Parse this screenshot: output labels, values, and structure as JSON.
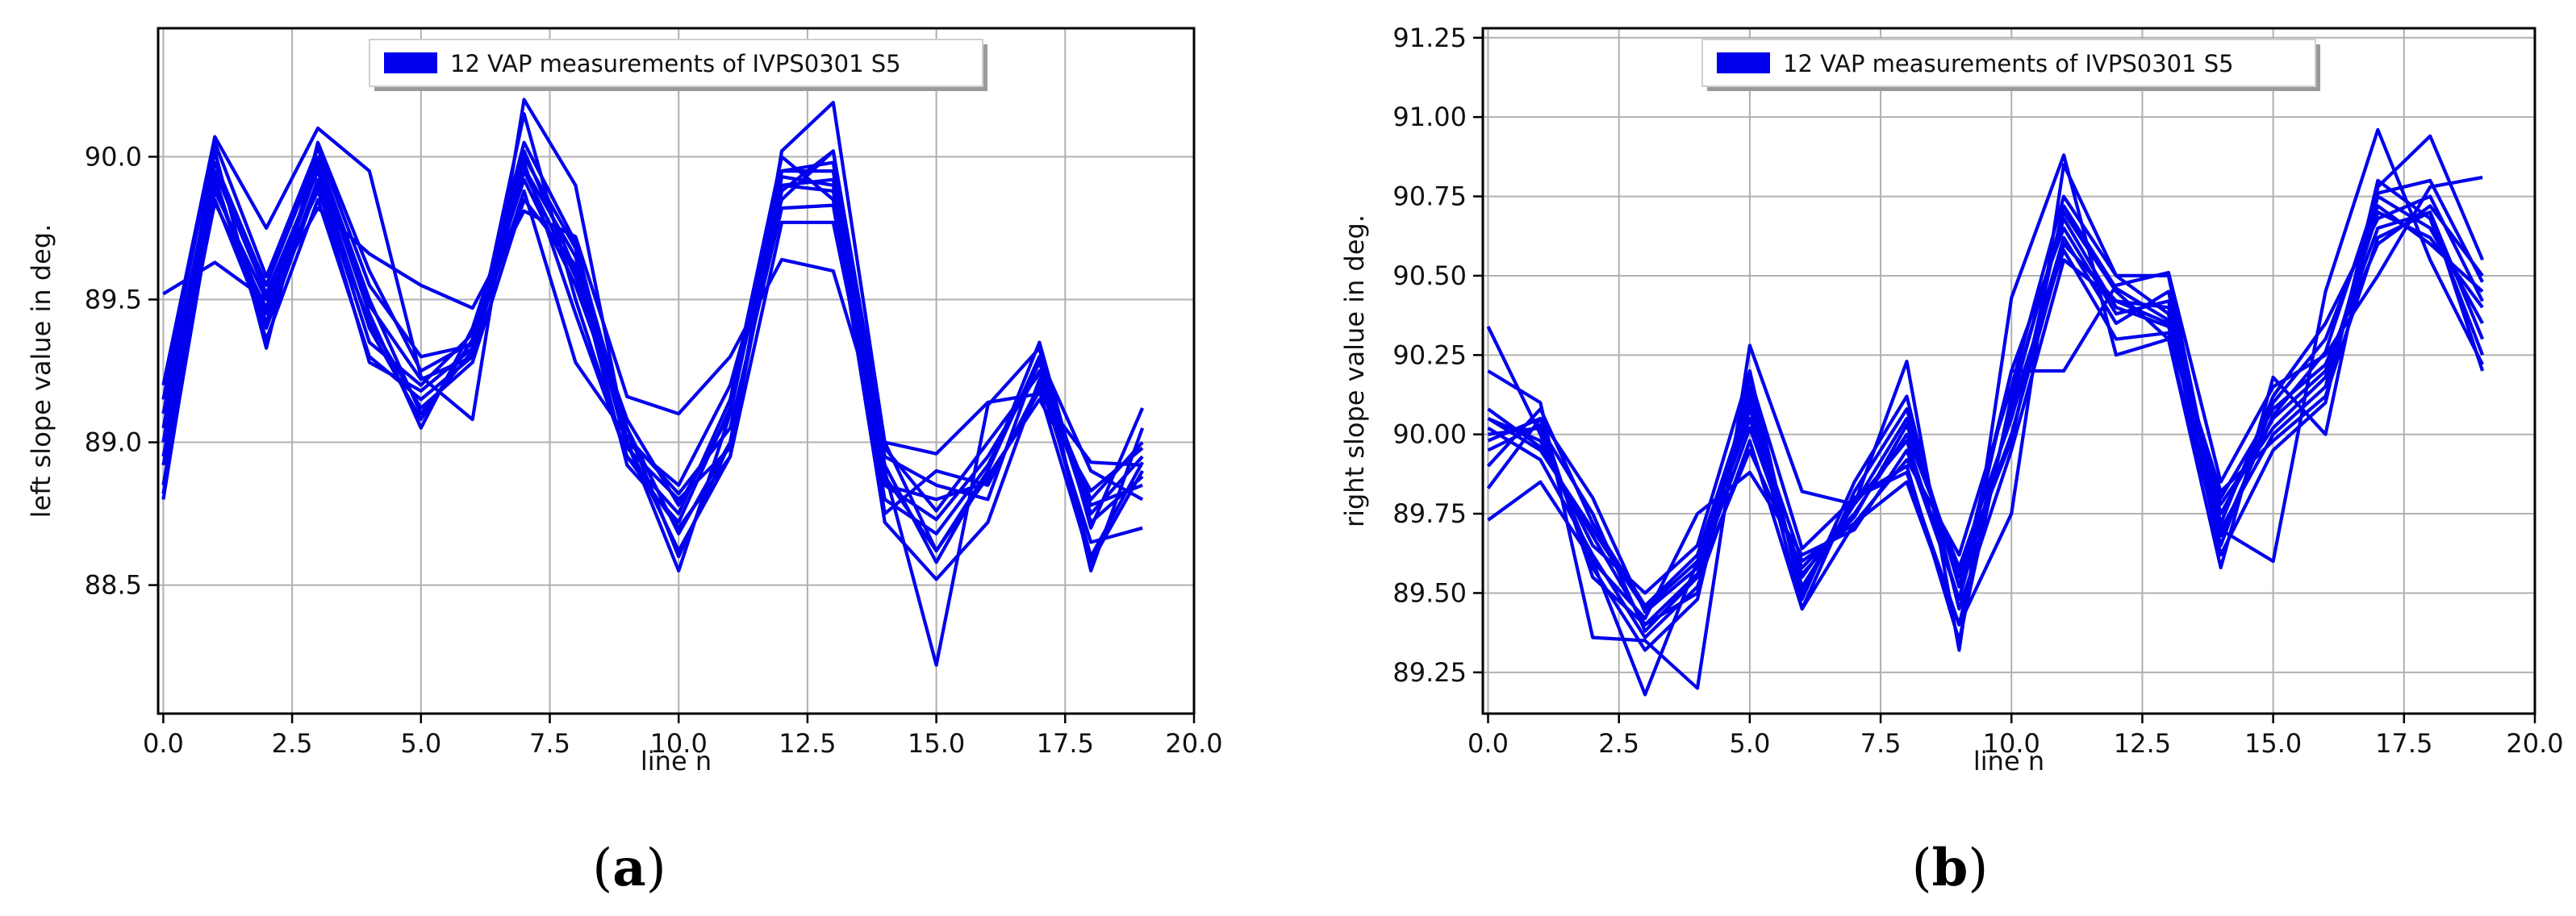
{
  "chart_data": [
    {
      "type": "line",
      "panel": "(a)",
      "caption_prefix": "(",
      "caption_letter": "a",
      "caption_suffix": ")",
      "xlabel": "line n",
      "ylabel": "left slope value in deg.",
      "legend": "12 VAP measurements of IVPS0301 S5",
      "legend_position": "top-center",
      "grid": true,
      "color": "#0000ee",
      "xlim": [
        -0.1,
        20.0
      ],
      "ylim": [
        88.05,
        90.45
      ],
      "xticks": [
        0.0,
        2.5,
        5.0,
        7.5,
        10.0,
        12.5,
        15.0,
        17.5,
        20.0
      ],
      "xtick_labels": [
        "0.0",
        "2.5",
        "5.0",
        "7.5",
        "10.0",
        "12.5",
        "15.0",
        "17.5",
        "20.0"
      ],
      "yticks": [
        88.5,
        89.0,
        89.5,
        90.0
      ],
      "ytick_labels": [
        "88.5",
        "89.0",
        "89.5",
        "90.0"
      ],
      "x": [
        0,
        1,
        2,
        3,
        4,
        5,
        6,
        7,
        8,
        9,
        10,
        11,
        12,
        13,
        14,
        15,
        16,
        17,
        18,
        19
      ],
      "series": [
        {
          "values": [
            89.52,
            89.63,
            89.5,
            89.82,
            89.66,
            89.55,
            89.47,
            89.81,
            89.72,
            89.16,
            89.1,
            89.3,
            89.64,
            89.6,
            89.0,
            88.96,
            89.14,
            89.17,
            88.93,
            88.92
          ]
        },
        {
          "values": [
            89.2,
            90.07,
            89.75,
            90.1,
            89.95,
            89.23,
            89.08,
            90.2,
            89.9,
            89.0,
            88.62,
            88.95,
            90.02,
            90.19,
            89.0,
            88.62,
            88.9,
            89.35,
            88.7,
            89.12
          ]
        },
        {
          "values": [
            88.8,
            89.93,
            89.36,
            89.85,
            89.3,
            89.15,
            89.3,
            90.15,
            89.5,
            88.95,
            88.7,
            88.95,
            89.77,
            89.77,
            88.9,
            88.22,
            89.13,
            89.33,
            88.55,
            89.05
          ]
        },
        {
          "values": [
            89.0,
            90.02,
            89.33,
            90.05,
            89.6,
            89.25,
            89.35,
            90.05,
            89.7,
            89.0,
            88.55,
            89.1,
            89.95,
            89.95,
            88.85,
            88.73,
            88.95,
            89.25,
            88.6,
            88.93
          ]
        },
        {
          "values": [
            88.95,
            89.84,
            89.47,
            89.98,
            89.45,
            89.05,
            89.4,
            89.96,
            89.65,
            88.98,
            88.8,
            88.98,
            89.9,
            89.88,
            88.75,
            88.9,
            88.85,
            89.2,
            88.78,
            88.85
          ]
        },
        {
          "values": [
            89.1,
            89.98,
            89.55,
            90.0,
            89.5,
            89.1,
            89.32,
            90.02,
            89.6,
            89.0,
            88.85,
            89.2,
            89.85,
            90.02,
            88.95,
            88.85,
            88.8,
            89.3,
            88.9,
            88.8
          ]
        },
        {
          "values": [
            88.85,
            89.9,
            89.42,
            89.92,
            89.35,
            89.2,
            89.38,
            89.92,
            89.55,
            89.05,
            88.68,
            89.0,
            89.93,
            89.9,
            88.88,
            88.62,
            88.88,
            89.15,
            88.83,
            88.98
          ]
        },
        {
          "values": [
            89.05,
            89.95,
            89.52,
            89.95,
            89.4,
            89.08,
            89.36,
            89.98,
            89.45,
            88.95,
            88.75,
            89.15,
            90.0,
            89.85,
            88.72,
            88.52,
            88.72,
            89.22,
            88.65,
            88.7
          ]
        },
        {
          "values": [
            88.92,
            89.85,
            89.4,
            89.9,
            89.28,
            89.18,
            89.33,
            89.88,
            89.28,
            89.02,
            88.82,
            89.05,
            89.82,
            89.83,
            88.8,
            88.68,
            88.92,
            89.28,
            88.72,
            88.88
          ]
        },
        {
          "values": [
            89.15,
            90.05,
            89.58,
            90.03,
            89.55,
            89.3,
            89.34,
            90.0,
            89.68,
            89.05,
            88.6,
            89.0,
            89.88,
            90.02,
            88.98,
            88.76,
            89.0,
            89.24,
            88.8,
            89.0
          ]
        },
        {
          "values": [
            89.0,
            89.9,
            89.45,
            89.96,
            89.48,
            89.22,
            89.3,
            89.95,
            89.58,
            89.08,
            88.78,
            89.1,
            89.95,
            89.98,
            88.92,
            88.58,
            88.9,
            89.3,
            88.75,
            88.95
          ]
        },
        {
          "values": [
            88.82,
            89.88,
            89.5,
            89.88,
            89.42,
            89.12,
            89.28,
            89.85,
            89.62,
            88.92,
            88.72,
            89.12,
            89.9,
            89.92,
            88.85,
            88.8,
            88.86,
            89.18,
            88.58,
            88.9
          ]
        }
      ]
    },
    {
      "type": "line",
      "panel": "(b)",
      "caption_prefix": "(",
      "caption_letter": "b",
      "caption_suffix": ")",
      "xlabel": "line n",
      "ylabel": "right slope value in deg.",
      "legend": "12 VAP measurements of IVPS0301 S5",
      "legend_position": "top-center",
      "grid": true,
      "color": "#0000ee",
      "xlim": [
        -0.1,
        20.0
      ],
      "ylim": [
        89.12,
        91.28
      ],
      "xticks": [
        0.0,
        2.5,
        5.0,
        7.5,
        10.0,
        12.5,
        15.0,
        17.5,
        20.0
      ],
      "xtick_labels": [
        "0.0",
        "2.5",
        "5.0",
        "7.5",
        "10.0",
        "12.5",
        "15.0",
        "17.5",
        "20.0"
      ],
      "yticks": [
        89.25,
        89.5,
        89.75,
        90.0,
        90.25,
        90.5,
        90.75,
        91.0,
        91.25
      ],
      "ytick_labels": [
        "89.25",
        "89.50",
        "89.75",
        "90.00",
        "90.25",
        "90.50",
        "90.75",
        "91.00",
        "91.25"
      ],
      "x": [
        0,
        1,
        2,
        3,
        4,
        5,
        6,
        7,
        8,
        9,
        10,
        11,
        12,
        13,
        14,
        15,
        16,
        17,
        18,
        19
      ],
      "series": [
        {
          "values": [
            90.34,
            90.0,
            89.6,
            89.18,
            89.6,
            90.1,
            89.45,
            89.72,
            89.85,
            89.4,
            89.75,
            90.85,
            90.5,
            90.5,
            89.7,
            89.6,
            90.45,
            90.96,
            90.55,
            90.22
          ]
        },
        {
          "values": [
            90.2,
            90.1,
            89.36,
            89.35,
            89.2,
            90.28,
            89.82,
            89.78,
            90.23,
            89.32,
            90.43,
            90.88,
            90.25,
            90.3,
            89.58,
            90.18,
            90.0,
            90.78,
            90.94,
            90.55
          ]
        },
        {
          "values": [
            89.73,
            89.85,
            89.6,
            89.42,
            89.75,
            89.88,
            89.62,
            89.7,
            89.95,
            89.48,
            90.2,
            90.2,
            90.47,
            90.51,
            89.85,
            90.15,
            90.25,
            90.5,
            90.78,
            90.81
          ]
        },
        {
          "values": [
            90.05,
            89.95,
            89.7,
            89.45,
            89.6,
            90.05,
            89.55,
            89.78,
            90.05,
            89.55,
            90.0,
            90.6,
            90.42,
            90.4,
            89.75,
            90.05,
            90.2,
            90.65,
            90.7,
            90.3
          ]
        },
        {
          "values": [
            89.83,
            90.05,
            89.55,
            89.4,
            89.5,
            90.15,
            89.5,
            89.8,
            89.88,
            89.4,
            90.1,
            90.7,
            90.45,
            90.3,
            89.65,
            90.1,
            90.3,
            90.72,
            90.6,
            90.45
          ]
        },
        {
          "values": [
            90.0,
            90.02,
            89.75,
            89.38,
            89.55,
            89.95,
            89.58,
            89.75,
            90.0,
            89.58,
            90.05,
            90.62,
            90.35,
            90.45,
            89.7,
            90.0,
            90.15,
            90.75,
            90.65,
            90.35
          ]
        },
        {
          "values": [
            90.05,
            89.98,
            89.65,
            89.5,
            89.65,
            90.2,
            89.48,
            89.85,
            90.12,
            89.45,
            89.95,
            90.55,
            90.42,
            90.35,
            89.8,
            90.08,
            90.22,
            90.6,
            90.72,
            90.5
          ]
        },
        {
          "values": [
            89.98,
            90.05,
            89.8,
            89.44,
            89.58,
            90.08,
            89.6,
            89.72,
            89.92,
            89.62,
            90.15,
            90.75,
            90.5,
            90.38,
            89.62,
            89.95,
            90.1,
            90.8,
            90.68,
            90.25
          ]
        },
        {
          "values": [
            90.02,
            89.92,
            89.62,
            89.36,
            89.52,
            89.98,
            89.45,
            89.82,
            90.08,
            89.52,
            90.2,
            90.65,
            90.38,
            90.42,
            89.72,
            90.12,
            90.35,
            90.68,
            90.75,
            90.42
          ]
        },
        {
          "values": [
            89.9,
            90.08,
            89.72,
            89.46,
            89.62,
            90.12,
            89.52,
            89.78,
            89.98,
            89.48,
            90.08,
            90.58,
            90.3,
            90.32,
            89.78,
            90.02,
            90.18,
            90.7,
            90.62,
            90.4
          ]
        },
        {
          "values": [
            90.08,
            89.96,
            89.68,
            89.4,
            89.56,
            90.02,
            89.56,
            89.74,
            90.03,
            89.56,
            89.98,
            90.72,
            90.46,
            90.36,
            89.68,
            90.06,
            90.26,
            90.76,
            90.8,
            90.48
          ]
        },
        {
          "values": [
            89.95,
            90.03,
            89.58,
            89.32,
            89.48,
            90.18,
            89.64,
            89.8,
            89.9,
            89.35,
            90.12,
            90.68,
            90.4,
            90.34,
            89.82,
            89.98,
            90.12,
            90.62,
            90.7,
            90.2
          ]
        }
      ]
    }
  ]
}
